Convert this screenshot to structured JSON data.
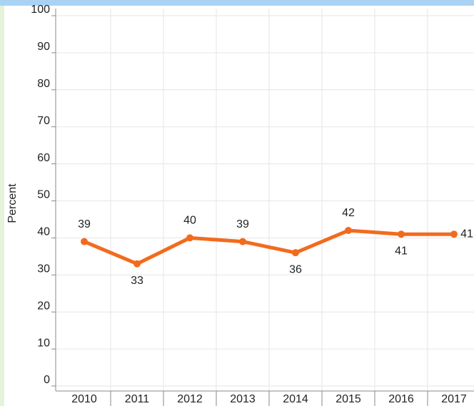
{
  "chart_data": {
    "type": "line",
    "y_label": "Percent",
    "categories": [
      "2010",
      "2011",
      "2012",
      "2013",
      "2014",
      "2015",
      "2016",
      "2017"
    ],
    "series": [
      {
        "name": "Percent",
        "color": "#f26b1d",
        "values": [
          39,
          33,
          40,
          39,
          36,
          42,
          41,
          41
        ]
      }
    ],
    "ylim": [
      0,
      100
    ],
    "yticks": [
      0,
      10,
      20,
      30,
      40,
      50,
      60,
      70,
      80,
      90,
      100
    ],
    "grid": true
  }
}
